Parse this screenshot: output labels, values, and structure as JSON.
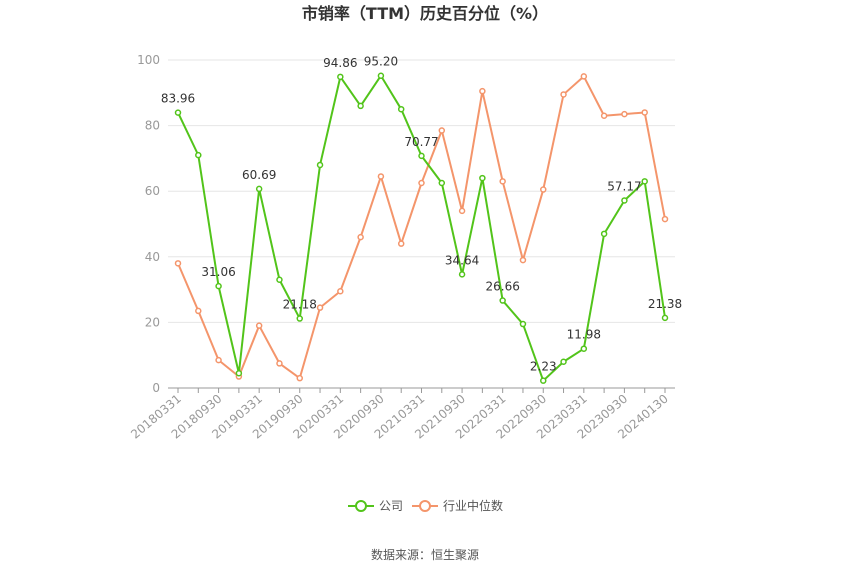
{
  "chart_data": {
    "type": "line",
    "title": "市销率（TTM）历史百分位（%）",
    "xlabel": "",
    "ylabel": "",
    "ylim": [
      0,
      100
    ],
    "yticks": [
      "0",
      "20",
      "40",
      "60",
      "80",
      "100"
    ],
    "grid": true,
    "legend_position": "bottom",
    "x": [
      "20180331",
      "20180630",
      "20180930",
      "20181231",
      "20190331",
      "20190630",
      "20190930",
      "20191231",
      "20200331",
      "20200630",
      "20200930",
      "20201231",
      "20210331",
      "20210630",
      "20210930",
      "20211231",
      "20220331",
      "20220630",
      "20220930",
      "20221231",
      "20230331",
      "20230630",
      "20230930",
      "20231231",
      "20240130"
    ],
    "x_tick_labels": [
      "20180331",
      "20180930",
      "20190331",
      "20190930",
      "20200331",
      "20200930",
      "20210331",
      "20210930",
      "20220331",
      "20220930",
      "20230331",
      "20230930",
      "20240130"
    ],
    "series": [
      {
        "name": "公司",
        "color": "#52c41a",
        "values": [
          83.96,
          71.0,
          31.06,
          4.5,
          60.69,
          33.0,
          21.18,
          68.0,
          94.86,
          86.0,
          95.2,
          85.0,
          70.77,
          62.5,
          34.64,
          64.0,
          26.66,
          19.5,
          2.23,
          8.0,
          11.98,
          47.0,
          57.17,
          63.0,
          21.38
        ],
        "labels": {
          "0": "83.96",
          "2": "31.06",
          "4": "60.69",
          "6": "21.18",
          "8": "94.86",
          "10": "95.20",
          "12": "70.77",
          "14": "34.64",
          "16": "26.66",
          "18": "2.23",
          "20": "11.98",
          "22": "57.17",
          "24": "21.38"
        }
      },
      {
        "name": "行业中位数",
        "color": "#f4956b",
        "values": [
          38.0,
          23.5,
          8.5,
          3.5,
          19.0,
          7.5,
          3.0,
          24.5,
          29.5,
          46.0,
          64.5,
          44.0,
          62.5,
          78.5,
          54.0,
          90.5,
          63.0,
          39.0,
          60.5,
          89.5,
          95.0,
          83.0,
          83.5,
          84.0,
          51.5
        ]
      }
    ]
  },
  "source_text": "数据来源：恒生聚源"
}
